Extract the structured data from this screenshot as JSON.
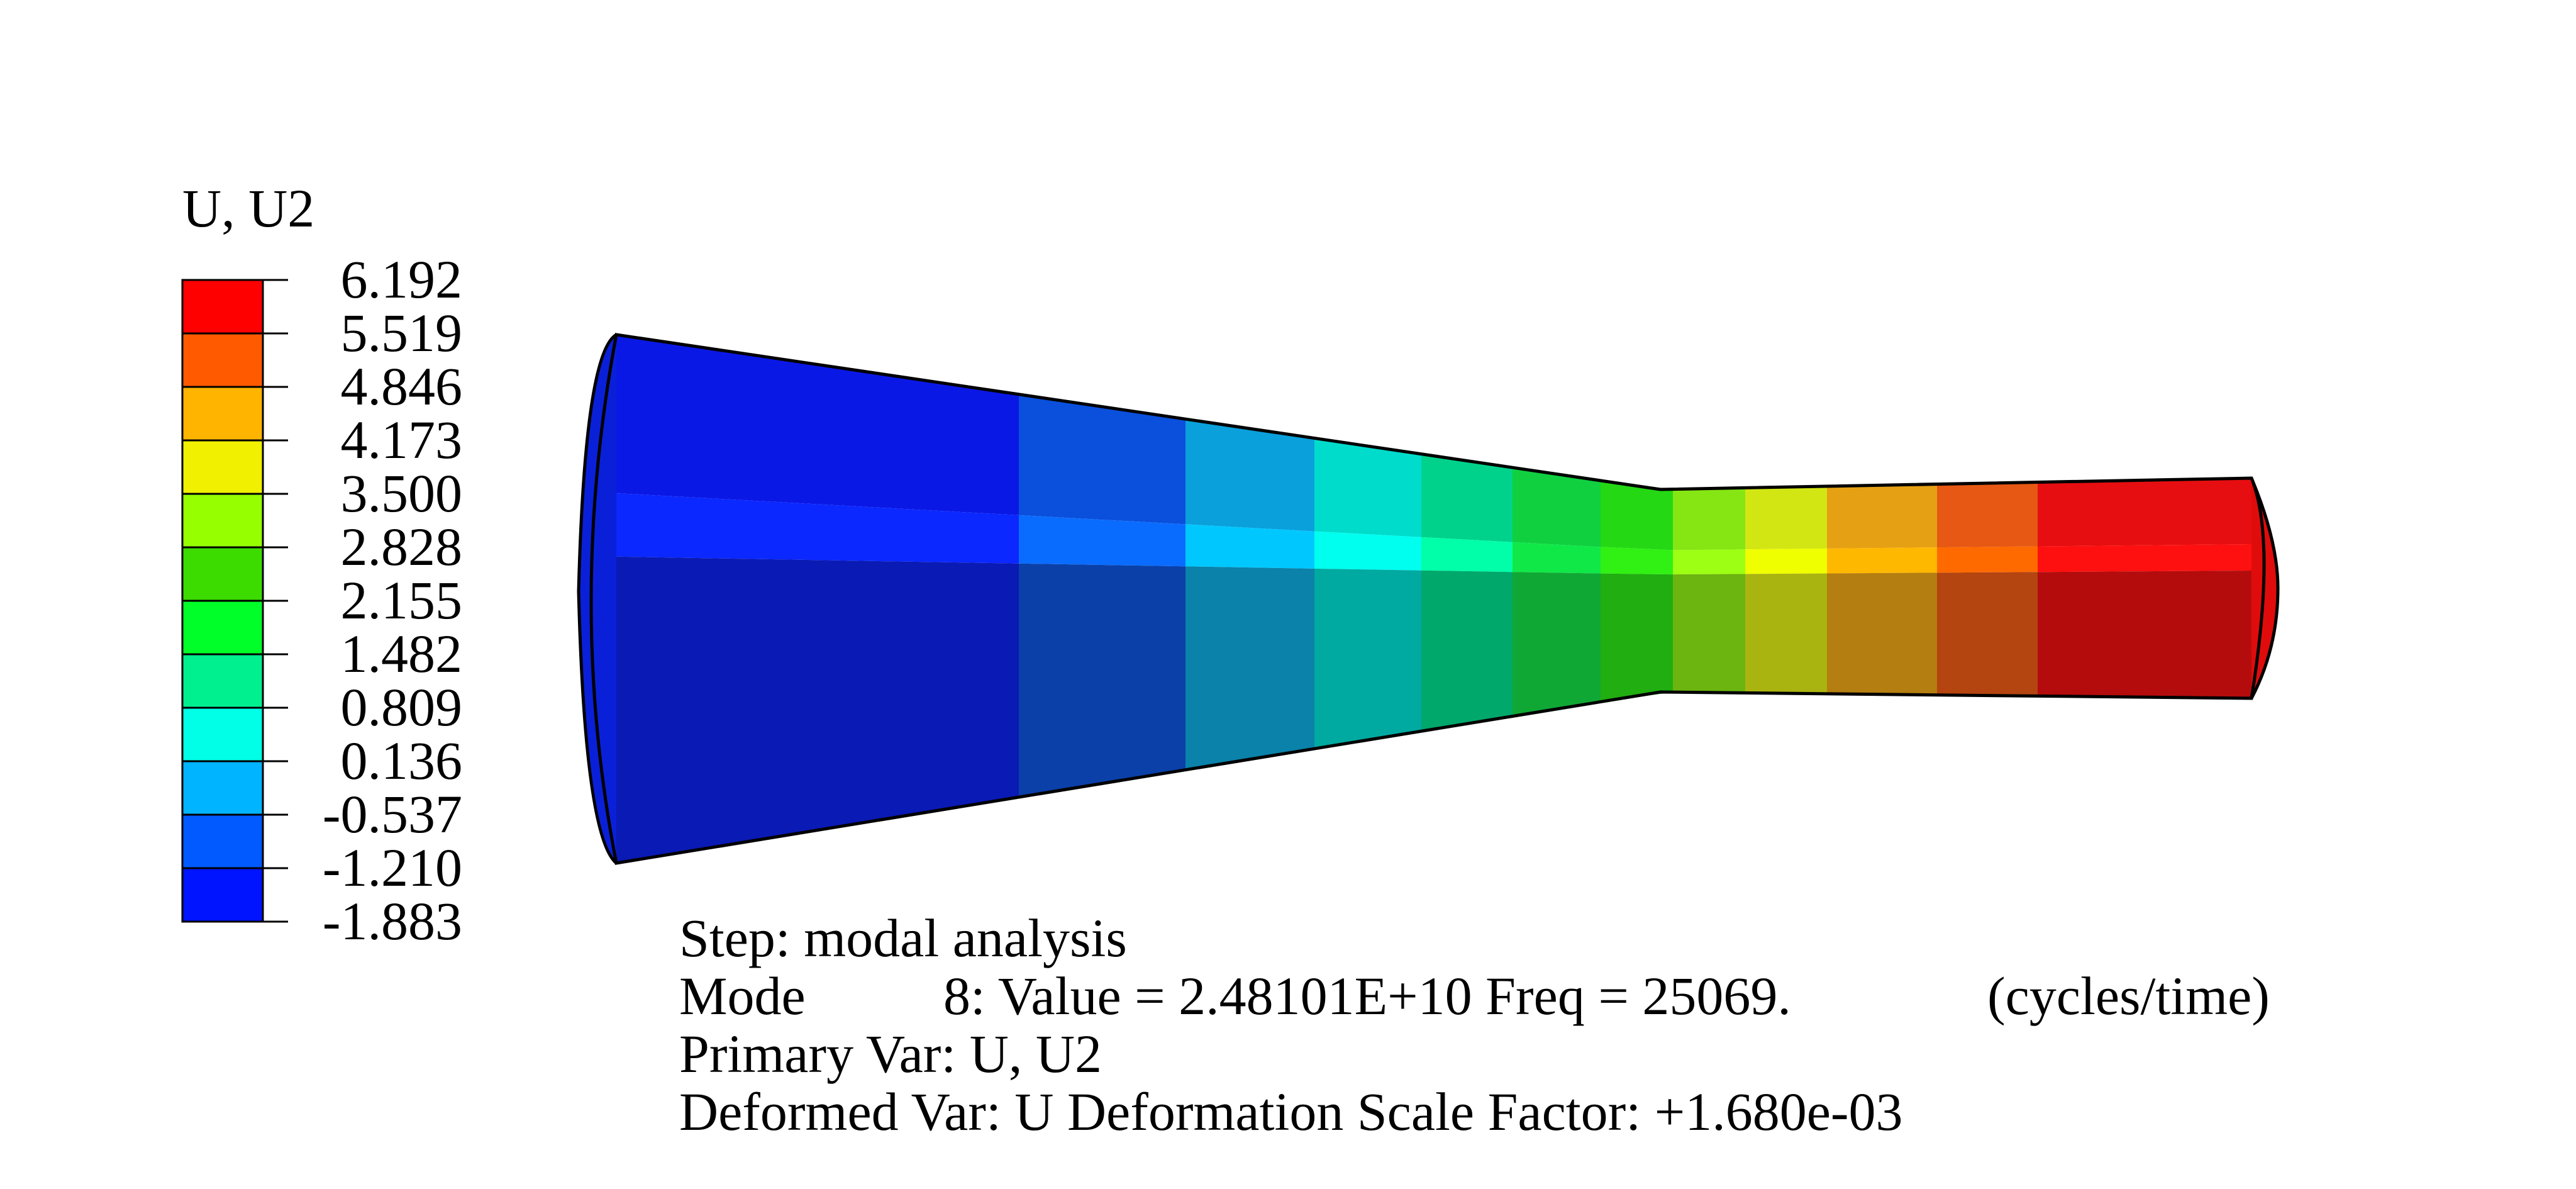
{
  "legend": {
    "title": "U, U2",
    "labels": [
      "6.192",
      "5.519",
      "4.846",
      "4.173",
      "3.500",
      "2.828",
      "2.155",
      "1.482",
      "0.809",
      "0.136",
      "-0.537",
      "-1.210",
      "-1.883"
    ],
    "colors": [
      "#ff0000",
      "#ff5a00",
      "#ffb400",
      "#f0f000",
      "#96ff00",
      "#3cdc00",
      "#00ff28",
      "#00f090",
      "#00ffe6",
      "#00b4ff",
      "#005aff",
      "#0014ff"
    ]
  },
  "info": {
    "step_line": "Step: modal analysis",
    "mode_label": "Mode",
    "mode_detail": "8: Value =  2.48101E+10 Freq =   25069.",
    "mode_units": "(cycles/time)",
    "primary_var": "Primary Var: U, U2",
    "deformed_var": "Deformed Var: U   Deformation Scale Factor: +1.680e-03"
  },
  "model": {
    "band_colors_top": [
      "#0a18e6",
      "#0a50dc",
      "#0aa0dc",
      "#00dccc",
      "#00d28c",
      "#10d040",
      "#24d814",
      "#86e614",
      "#d2e614",
      "#e6a014",
      "#e65814",
      "#e60e10"
    ],
    "band_colors_mid": [
      "#0a28ff",
      "#0a6cff",
      "#00c8ff",
      "#00ffef",
      "#00ffa8",
      "#10e848",
      "#30f014",
      "#9cff14",
      "#f0ff00",
      "#ffb800",
      "#ff6a00",
      "#ff1010"
    ],
    "band_colors_bottom": [
      "#0a1ab4",
      "#0a40a8",
      "#0a82aa",
      "#00aaa0",
      "#00a86c",
      "#10a834",
      "#20ae10",
      "#6cb410",
      "#aab410",
      "#b47e10",
      "#b44410",
      "#b40c0c"
    ]
  }
}
